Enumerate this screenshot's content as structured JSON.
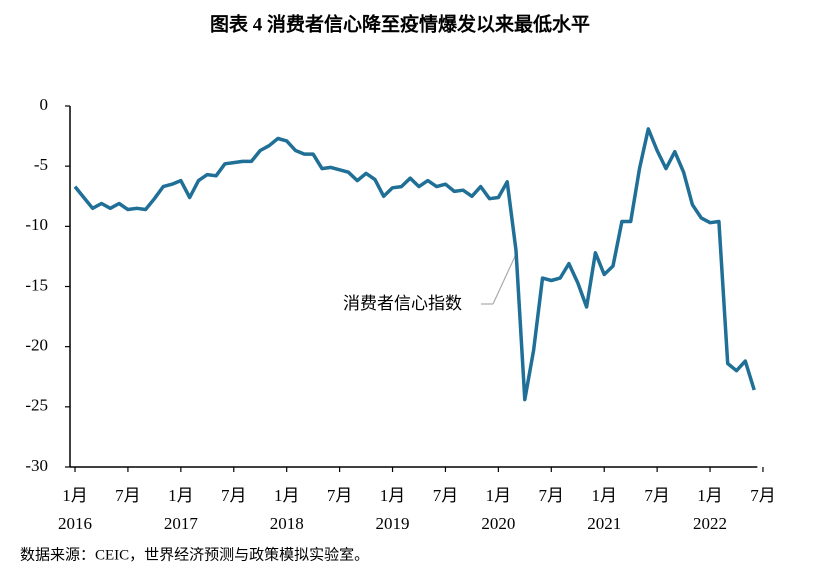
{
  "chart_data": {
    "type": "line",
    "title": "图表 4  消费者信心降至疫情爆发以来最低水平",
    "source": "数据来源：CEIC，世界经济预测与政策模拟实验室。",
    "annotation": "消费者信心指数",
    "categories": [
      "1月",
      null,
      null,
      null,
      null,
      null,
      "7月",
      null,
      null,
      null,
      null,
      null,
      "1月",
      null,
      null,
      null,
      null,
      null,
      "7月",
      null,
      null,
      null,
      null,
      null,
      "1月",
      null,
      null,
      null,
      null,
      null,
      "7月",
      null,
      null,
      null,
      null,
      null,
      "1月",
      null,
      null,
      null,
      null,
      null,
      "7月",
      null,
      null,
      null,
      null,
      null,
      "1月",
      null,
      null,
      null,
      null,
      null,
      "7月",
      null,
      null,
      null,
      null,
      null,
      "1月",
      null,
      null,
      null,
      null,
      null,
      "7月",
      null,
      null,
      null,
      null,
      null,
      "1月",
      null,
      null,
      null,
      null,
      null,
      "7月"
    ],
    "years": [
      "2016",
      "2017",
      "2018",
      "2019",
      "2020",
      "2021",
      "2022"
    ],
    "series": [
      {
        "name": "消费者信心指数",
        "color": "#1f6f97",
        "values": [
          -6.7,
          -7.6,
          -8.5,
          -8.1,
          -8.5,
          -8.1,
          -8.6,
          -8.5,
          -8.6,
          -7.7,
          -6.7,
          -6.5,
          -6.2,
          -7.6,
          -6.2,
          -5.7,
          -5.8,
          -4.8,
          -4.7,
          -4.6,
          -4.6,
          -3.7,
          -3.3,
          -2.7,
          -2.9,
          -3.7,
          -4.0,
          -4.0,
          -5.2,
          -5.1,
          -5.3,
          -5.5,
          -6.2,
          -5.6,
          -6.1,
          -7.5,
          -6.8,
          -6.7,
          -6.0,
          -6.7,
          -6.2,
          -6.7,
          -6.5,
          -7.1,
          -7.0,
          -7.5,
          -6.7,
          -7.7,
          -7.6,
          -6.3,
          -12.0,
          -24.4,
          -20.3,
          -14.3,
          -14.5,
          -14.3,
          -13.1,
          -14.7,
          -16.7,
          -12.2,
          -14.0,
          -13.3,
          -9.6,
          -9.6,
          -5.2,
          -1.9,
          -3.7,
          -5.2,
          -3.8,
          -5.5,
          -8.2,
          -9.3,
          -9.7,
          -9.6,
          -21.4,
          -22.0,
          -21.2,
          -23.6,
          null
        ]
      }
    ],
    "ylim": [
      -30,
      0
    ],
    "yticks": [
      0,
      -5,
      -10,
      -15,
      -20,
      -25,
      -30
    ]
  }
}
